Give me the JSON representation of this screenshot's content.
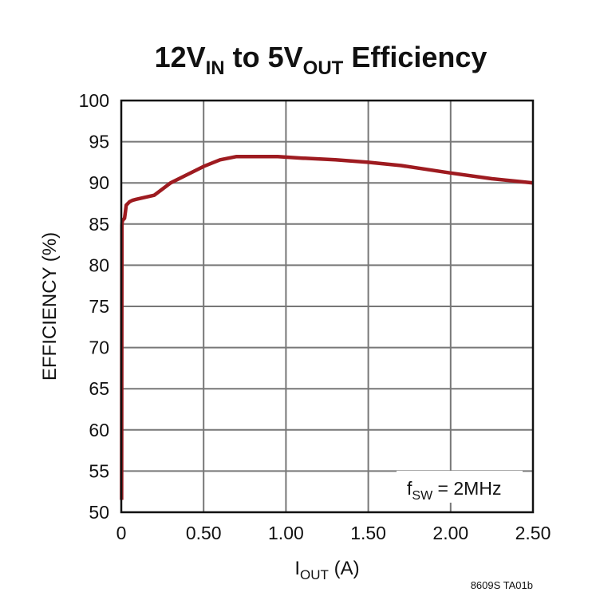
{
  "chart_data": {
    "type": "line",
    "title": {
      "main": "12V",
      "sub1": "IN",
      "mid": " to 5V",
      "sub2": "OUT",
      "end": " Efficiency"
    },
    "xlabel": {
      "main": "I",
      "sub": "OUT",
      "end": " (A)"
    },
    "ylabel": "EFFICIENCY (%)",
    "xlim": [
      0,
      2.5
    ],
    "ylim": [
      50,
      100
    ],
    "x_ticks": [
      "0",
      "0.50",
      "1.00",
      "1.50",
      "2.00",
      "2.50"
    ],
    "x_tick_values": [
      0,
      0.5,
      1.0,
      1.5,
      2.0,
      2.5
    ],
    "y_ticks": [
      "50",
      "55",
      "60",
      "65",
      "70",
      "75",
      "80",
      "85",
      "90",
      "95",
      "100"
    ],
    "grid": true,
    "annotation": {
      "main": "f",
      "sub": "SW",
      "end": " = 2MHz"
    },
    "note": "8609S TA01b",
    "color": "#9e1b20",
    "series": [
      {
        "x": [
          0.002,
          0.004,
          0.006,
          0.01,
          0.02,
          0.025,
          0.03,
          0.04,
          0.05,
          0.07,
          0.09,
          0.2,
          0.3,
          0.4,
          0.5,
          0.6,
          0.7,
          0.8,
          0.95,
          1.1,
          1.3,
          1.5,
          1.7,
          2.0,
          2.25,
          2.5
        ],
        "y": [
          51.5,
          84.8,
          85.3,
          85.5,
          85.7,
          86.5,
          87.3,
          87.5,
          87.7,
          87.9,
          88.0,
          88.5,
          90.0,
          91.0,
          92.0,
          92.8,
          93.2,
          93.2,
          93.2,
          93.0,
          92.8,
          92.5,
          92.1,
          91.2,
          90.5,
          90.0
        ]
      }
    ]
  }
}
